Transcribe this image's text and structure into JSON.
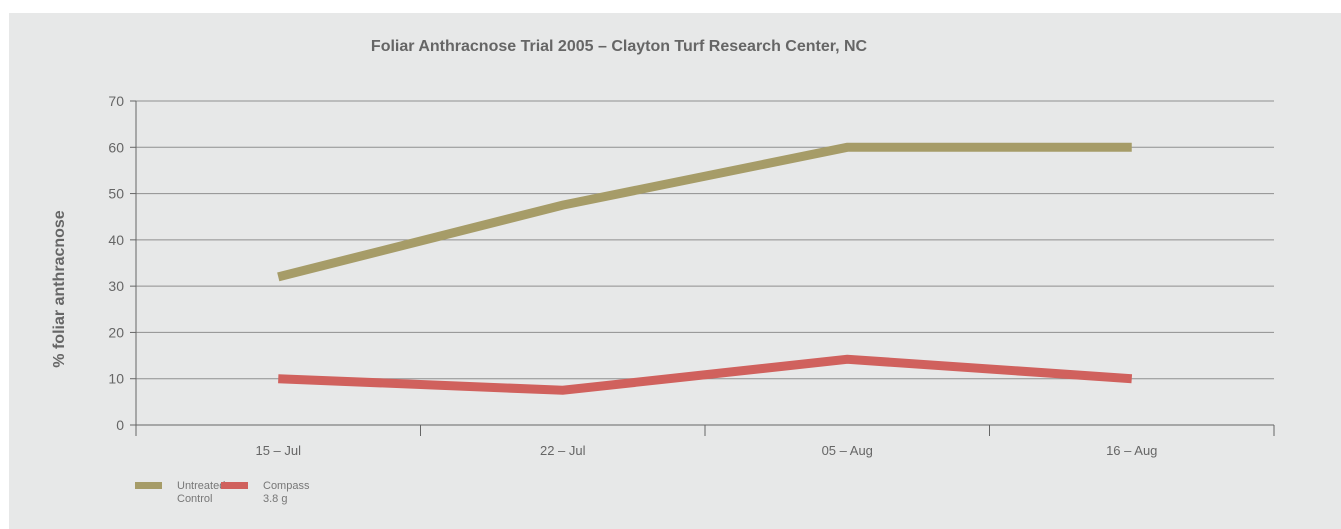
{
  "chart_data": {
    "type": "line",
    "title": "Foliar Anthracnose Trial 2005 – Clayton Turf Research Center, NC",
    "xlabel": "",
    "ylabel": "% foliar anthracnose",
    "categories": [
      "15 – Jul",
      "22 – Jul",
      "05 – Aug",
      "16 – Aug"
    ],
    "ylim": [
      0,
      70
    ],
    "yticks": [
      0,
      10,
      20,
      30,
      40,
      50,
      60,
      70
    ],
    "grid": true,
    "legend_position": "bottom-left",
    "series": [
      {
        "name": "Untreated Control",
        "legend_lines": [
          "Untreated",
          "Control"
        ],
        "color": "#a69c68",
        "values": [
          32,
          47.5,
          60,
          60
        ]
      },
      {
        "name": "Compass 3.8 g",
        "legend_lines": [
          "Compass",
          "3.8 g"
        ],
        "color": "#d0615d",
        "values": [
          10,
          7.5,
          14.2,
          10
        ]
      }
    ]
  }
}
